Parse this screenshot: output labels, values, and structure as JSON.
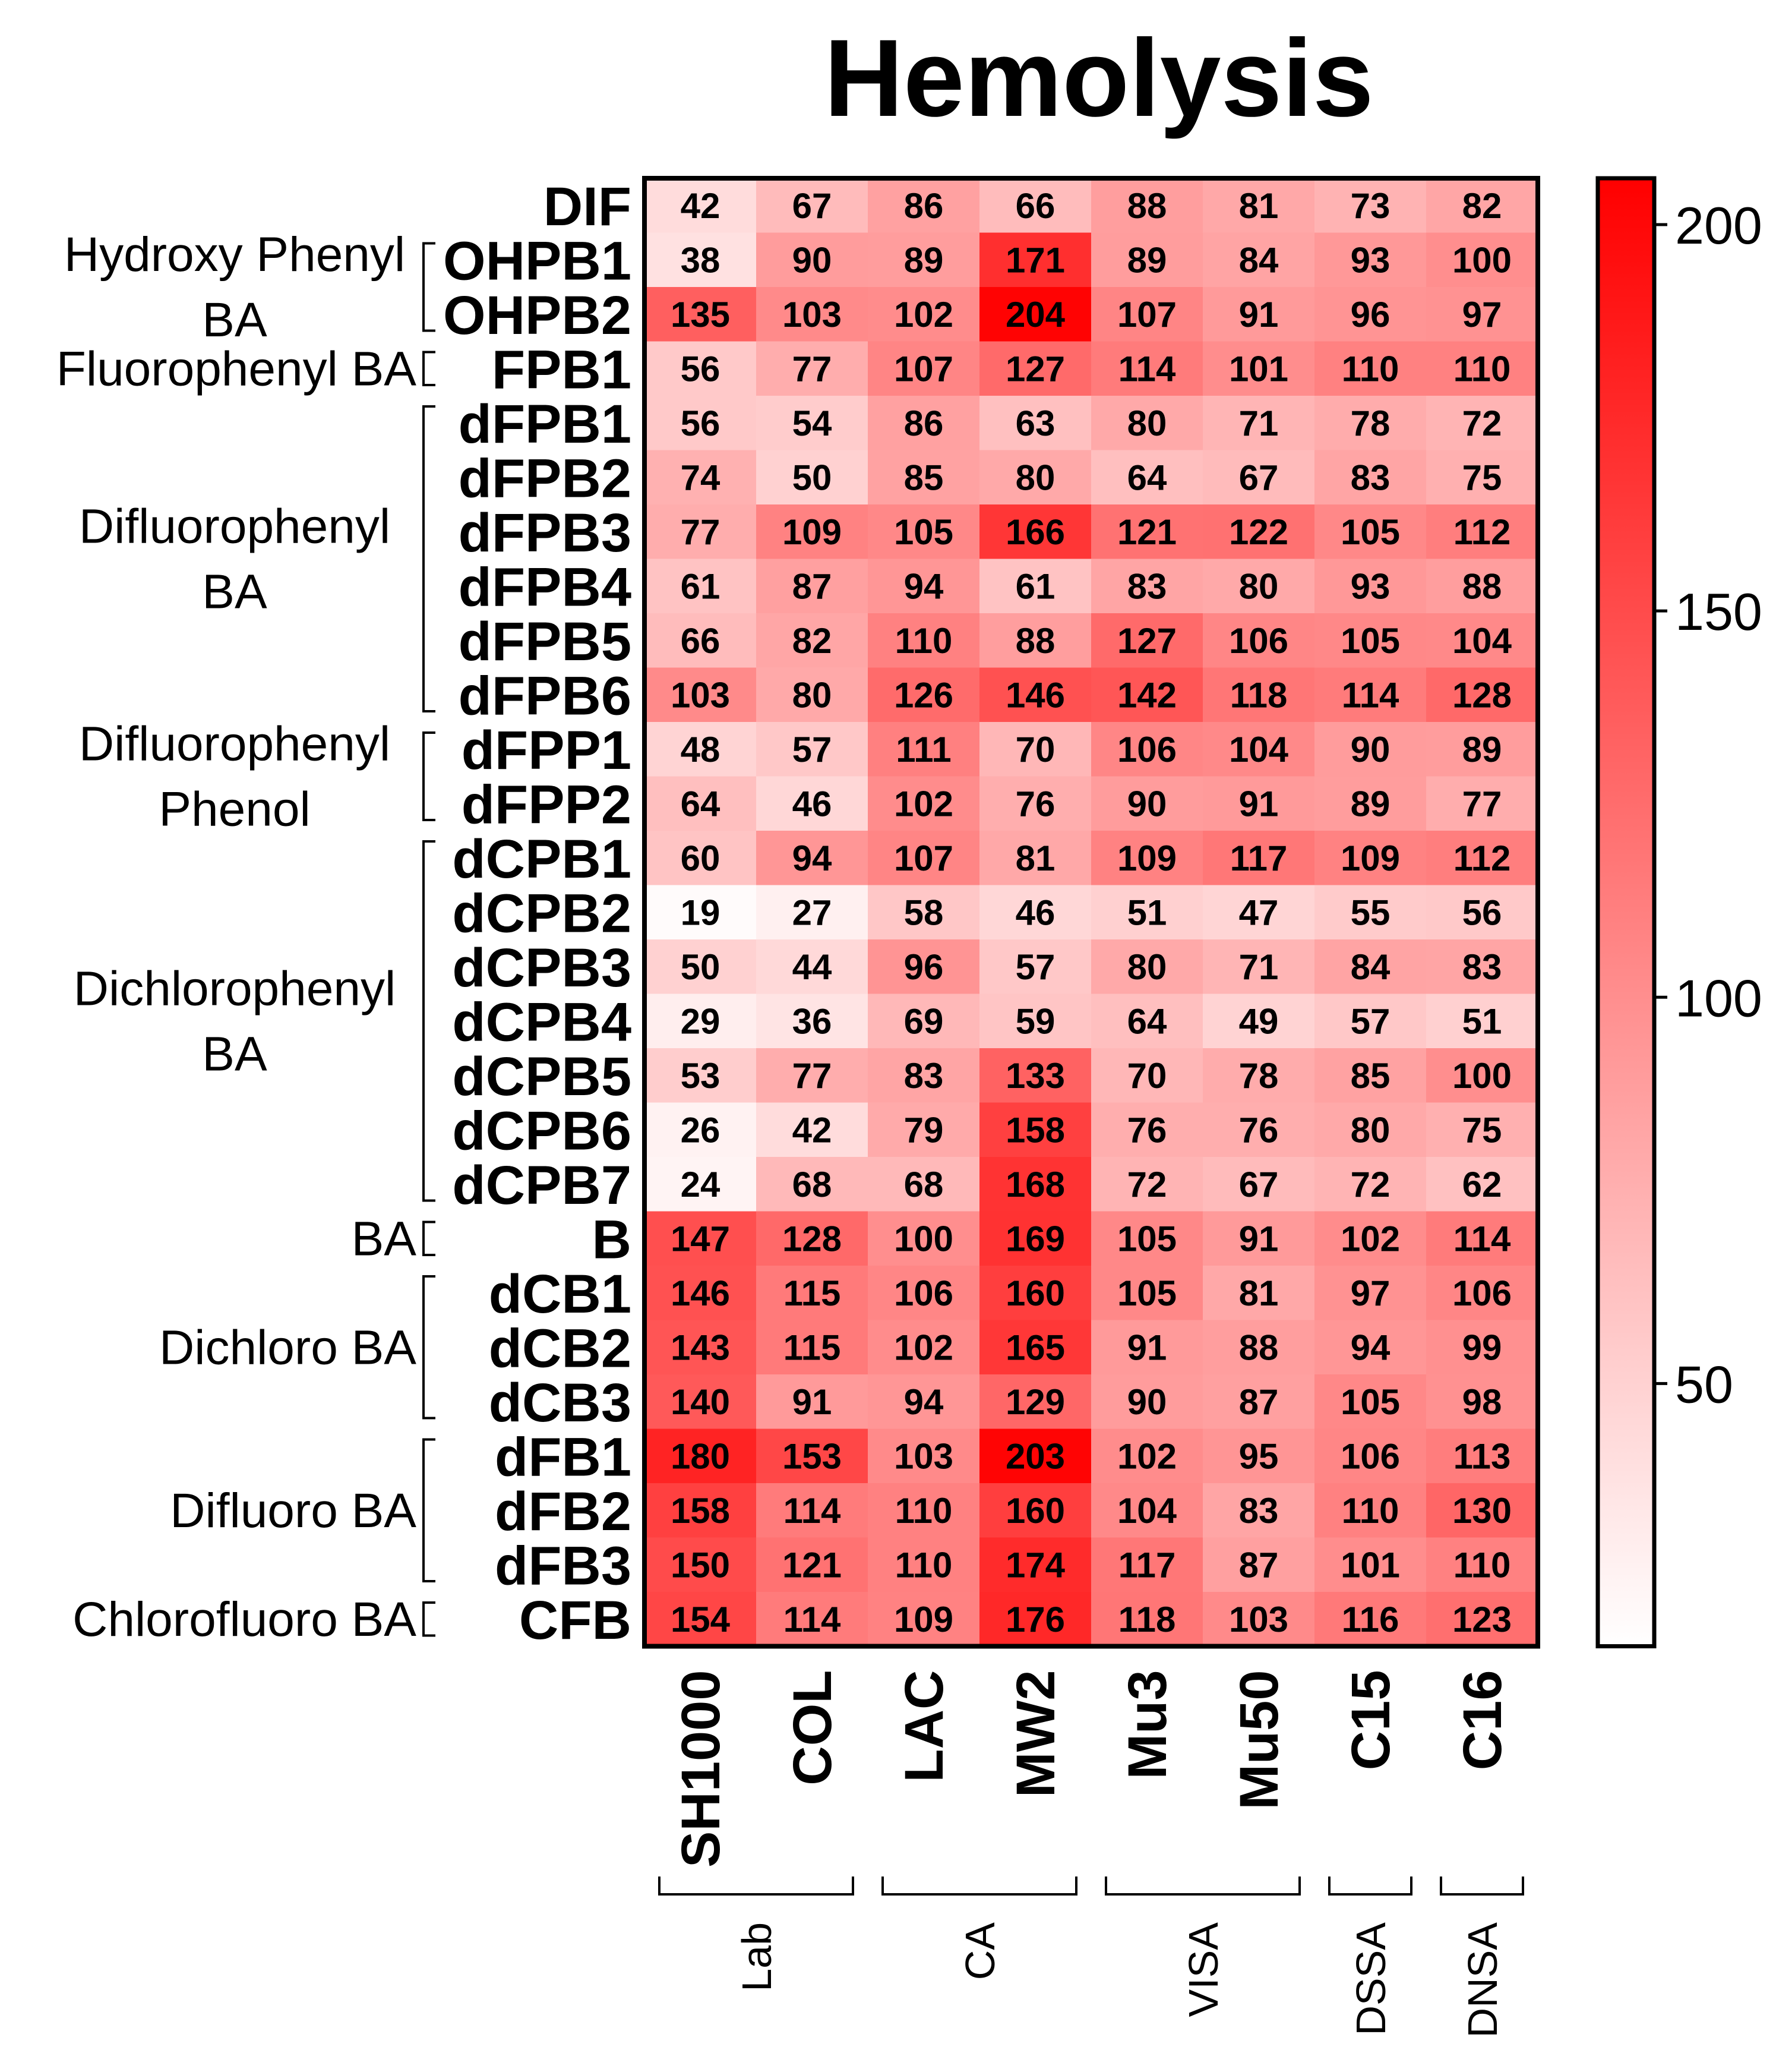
{
  "chart_data": {
    "type": "heatmap",
    "title": "Hemolysis",
    "columns": [
      "SH1000",
      "COL",
      "LAC",
      "MW2",
      "Mu3",
      "Mu50",
      "C15",
      "C16"
    ],
    "column_groups": [
      {
        "label": "Lab",
        "columns": [
          "SH1000",
          "COL"
        ]
      },
      {
        "label": "CA",
        "columns": [
          "LAC",
          "MW2"
        ]
      },
      {
        "label": "VISA",
        "columns": [
          "Mu3",
          "Mu50"
        ]
      },
      {
        "label": "DSSA",
        "columns": [
          "C15"
        ]
      },
      {
        "label": "DNSA",
        "columns": [
          "C16"
        ]
      }
    ],
    "rows": [
      {
        "label": "DIF",
        "values": [
          42,
          67,
          86,
          66,
          88,
          81,
          73,
          82
        ]
      },
      {
        "label": "OHPB1",
        "values": [
          38,
          90,
          89,
          171,
          89,
          84,
          93,
          100
        ]
      },
      {
        "label": "OHPB2",
        "values": [
          135,
          103,
          102,
          204,
          107,
          91,
          96,
          97
        ]
      },
      {
        "label": "FPB1",
        "values": [
          56,
          77,
          107,
          127,
          114,
          101,
          110,
          110
        ]
      },
      {
        "label": "dFPB1",
        "values": [
          56,
          54,
          86,
          63,
          80,
          71,
          78,
          72
        ]
      },
      {
        "label": "dFPB2",
        "values": [
          74,
          50,
          85,
          80,
          64,
          67,
          83,
          75
        ]
      },
      {
        "label": "dFPB3",
        "values": [
          77,
          109,
          105,
          166,
          121,
          122,
          105,
          112
        ]
      },
      {
        "label": "dFPB4",
        "values": [
          61,
          87,
          94,
          61,
          83,
          80,
          93,
          88
        ]
      },
      {
        "label": "dFPB5",
        "values": [
          66,
          82,
          110,
          88,
          127,
          106,
          105,
          104
        ]
      },
      {
        "label": "dFPB6",
        "values": [
          103,
          80,
          126,
          146,
          142,
          118,
          114,
          128
        ]
      },
      {
        "label": "dFPP1",
        "values": [
          48,
          57,
          111,
          70,
          106,
          104,
          90,
          89
        ]
      },
      {
        "label": "dFPP2",
        "values": [
          64,
          46,
          102,
          76,
          90,
          91,
          89,
          77
        ]
      },
      {
        "label": "dCPB1",
        "values": [
          60,
          94,
          107,
          81,
          109,
          117,
          109,
          112
        ]
      },
      {
        "label": "dCPB2",
        "values": [
          19,
          27,
          58,
          46,
          51,
          47,
          55,
          56
        ]
      },
      {
        "label": "dCPB3",
        "values": [
          50,
          44,
          96,
          57,
          80,
          71,
          84,
          83
        ]
      },
      {
        "label": "dCPB4",
        "values": [
          29,
          36,
          69,
          59,
          64,
          49,
          57,
          51
        ]
      },
      {
        "label": "dCPB5",
        "values": [
          53,
          77,
          83,
          133,
          70,
          78,
          85,
          100
        ]
      },
      {
        "label": "dCPB6",
        "values": [
          26,
          42,
          79,
          158,
          76,
          76,
          80,
          75
        ]
      },
      {
        "label": "dCPB7",
        "values": [
          24,
          68,
          68,
          168,
          72,
          67,
          72,
          62
        ]
      },
      {
        "label": "B",
        "values": [
          147,
          128,
          100,
          169,
          105,
          91,
          102,
          114
        ]
      },
      {
        "label": "dCB1",
        "values": [
          146,
          115,
          106,
          160,
          105,
          81,
          97,
          106
        ]
      },
      {
        "label": "dCB2",
        "values": [
          143,
          115,
          102,
          165,
          91,
          88,
          94,
          99
        ]
      },
      {
        "label": "dCB3",
        "values": [
          140,
          91,
          94,
          129,
          90,
          87,
          105,
          98
        ]
      },
      {
        "label": "dFB1",
        "values": [
          180,
          153,
          103,
          203,
          102,
          95,
          106,
          113
        ]
      },
      {
        "label": "dFB2",
        "values": [
          158,
          114,
          110,
          160,
          104,
          83,
          110,
          130
        ]
      },
      {
        "label": "dFB3",
        "values": [
          150,
          121,
          110,
          174,
          117,
          87,
          101,
          110
        ]
      },
      {
        "label": "CFB",
        "values": [
          154,
          114,
          109,
          176,
          118,
          103,
          116,
          123
        ]
      }
    ],
    "row_groups": [
      {
        "label_lines": [
          "Hydroxy  Phenyl",
          "BA"
        ],
        "rows": [
          "OHPB1",
          "OHPB2"
        ]
      },
      {
        "label_lines": [
          "Fluorophenyl  BA"
        ],
        "rows": [
          "FPB1"
        ]
      },
      {
        "label_lines": [
          "Difluorophenyl",
          "BA"
        ],
        "rows": [
          "dFPB1",
          "dFPB2",
          "dFPB3",
          "dFPB4",
          "dFPB5",
          "dFPB6"
        ]
      },
      {
        "label_lines": [
          "Difluorophenyl",
          "Phenol"
        ],
        "rows": [
          "dFPP1",
          "dFPP2"
        ]
      },
      {
        "label_lines": [
          "Dichlorophenyl",
          "BA"
        ],
        "rows": [
          "dCPB1",
          "dCPB2",
          "dCPB3",
          "dCPB4",
          "dCPB5",
          "dCPB6",
          "dCPB7"
        ]
      },
      {
        "label_lines": [
          "BA"
        ],
        "rows": [
          "B"
        ]
      },
      {
        "label_lines": [
          "Dichloro  BA"
        ],
        "rows": [
          "dCB1",
          "dCB2",
          "dCB3"
        ]
      },
      {
        "label_lines": [
          "Difluoro  BA"
        ],
        "rows": [
          "dFB1",
          "dFB2",
          "dFB3"
        ]
      },
      {
        "label_lines": [
          "Chlorofluoro  BA"
        ],
        "rows": [
          "CFB"
        ]
      }
    ],
    "colorbar": {
      "range": [
        16,
        206
      ],
      "ticks": [
        50,
        100,
        150,
        200
      ],
      "low_color": "#ffffff",
      "high_color": "#ff0000"
    }
  }
}
